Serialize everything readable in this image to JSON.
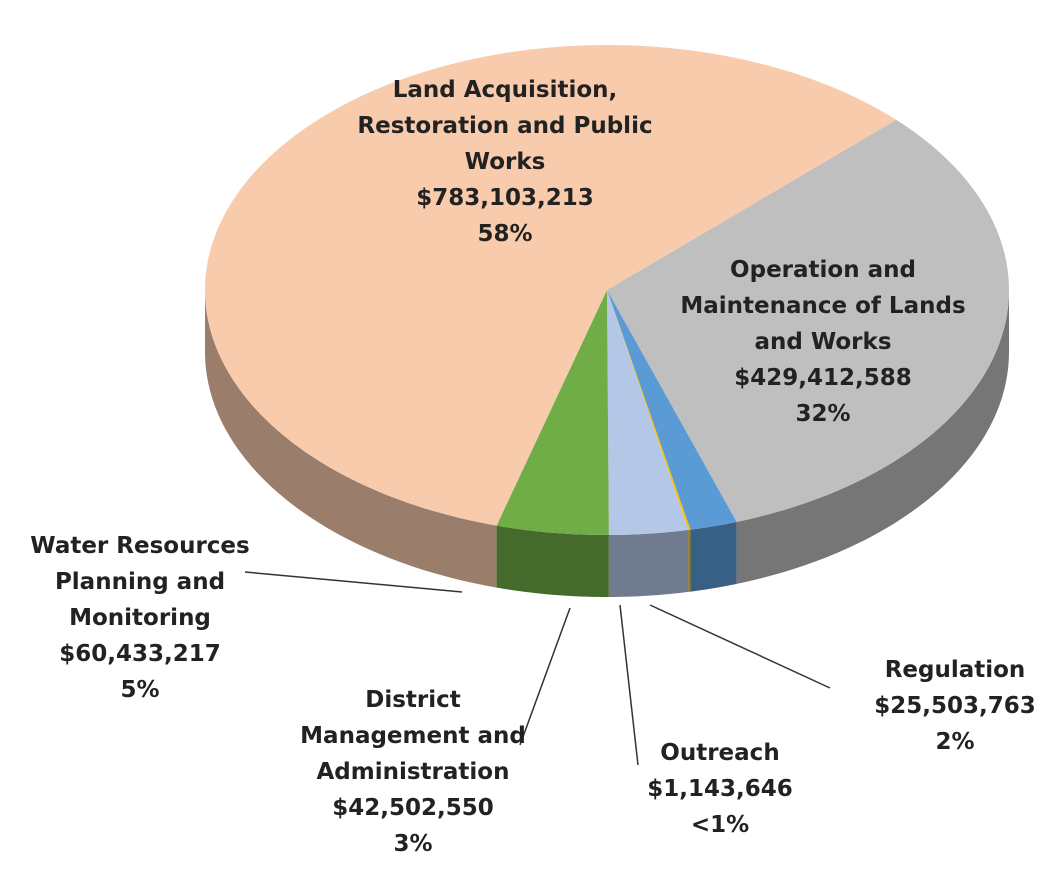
{
  "chart_data": {
    "type": "pie",
    "categories": [
      "Operation and Maintenance of Lands and Works",
      "Regulation",
      "Outreach",
      "District Management and Administration",
      "Water Resources Planning and Monitoring",
      "Land Acquisition, Restoration and Public Works"
    ],
    "values": [
      429412588,
      25503763,
      1143646,
      42502550,
      60433217,
      783103213
    ],
    "value_labels": [
      "$429,412,588",
      "$25,503,763",
      "$1,143,646",
      "$42,502,550",
      "$60,433,217",
      "$783,103,213"
    ],
    "percents": [
      32,
      2,
      0.1,
      3,
      5,
      58
    ],
    "percent_labels": [
      "32%",
      "2%",
      "<1%",
      "3%",
      "5%",
      "58%"
    ],
    "colors": [
      "#bfbfbf",
      "#5b9bd5",
      "#ffc000",
      "#b4c7e7",
      "#70ad47",
      "#f8cbad"
    ]
  }
}
